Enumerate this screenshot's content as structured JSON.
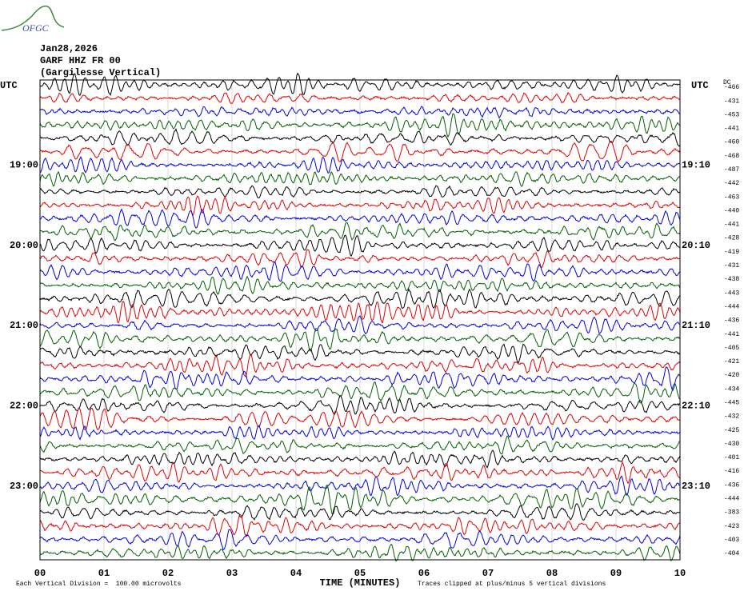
{
  "logo": {
    "text": "OFGC"
  },
  "header": {
    "date": "Jan28,2026",
    "station": "GARF HHZ FR 00",
    "location": "(Gargilesse Vertical)"
  },
  "left_axis": {
    "title": "UTC",
    "labels": [
      "19:00",
      "20:00",
      "21:00",
      "22:00",
      "23:00"
    ]
  },
  "right_axis": {
    "title": "UTC",
    "labels": [
      "19:10",
      "20:10",
      "21:10",
      "22:10",
      "23:10"
    ]
  },
  "dc": {
    "title": "DC",
    "values": [
      -466,
      -431,
      -453,
      -441,
      -460,
      -468,
      -487,
      -442,
      -463,
      -440,
      -441,
      -428,
      -419,
      -431,
      -438,
      -443,
      -444,
      -436,
      -441,
      -405,
      -421,
      -420,
      -434,
      -445,
      -432,
      -425,
      -430,
      -401,
      -416,
      -436,
      -444,
      -383,
      -423,
      -403,
      -404
    ]
  },
  "x_axis": {
    "title": "TIME (MINUTES)",
    "ticks": [
      "00",
      "01",
      "02",
      "03",
      "04",
      "05",
      "06",
      "07",
      "08",
      "09",
      "10"
    ]
  },
  "footer": {
    "scale": "Each Vertical Division =  100.00 microvolts",
    "clip": "Traces clipped at plus/minus 5 vertical divisions"
  }
}
